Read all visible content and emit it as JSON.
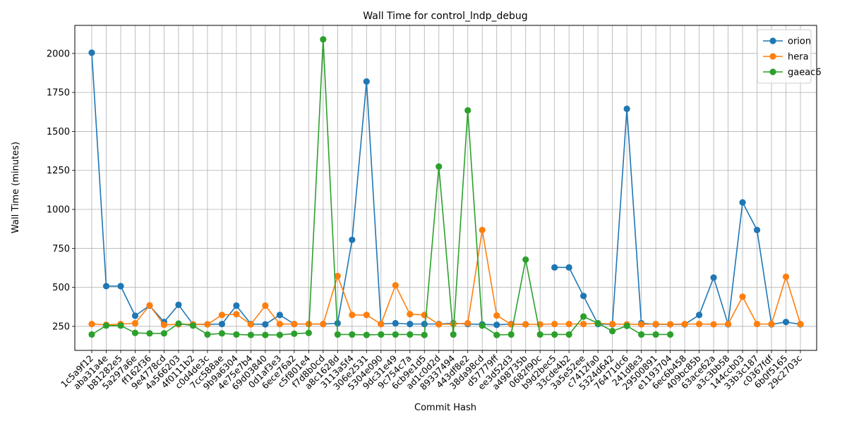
{
  "chart_data": {
    "type": "line",
    "title": "Wall Time for control_lndp_debug",
    "xlabel": "Commit Hash",
    "ylabel": "Wall Time (minutes)",
    "ylim": [
      96,
      2180
    ],
    "yticks": [
      250,
      500,
      750,
      1000,
      1250,
      1500,
      1750,
      2000
    ],
    "grid": true,
    "legend_position": "top-right",
    "categories": [
      "1c5a9f12",
      "aba31a4e",
      "b81282e5",
      "5a297a6e",
      "ff162f36",
      "9e4778cd",
      "4a566203",
      "4f0111b2",
      "c0d4de3c",
      "7cc588ae",
      "9b9a6304",
      "4e75e7b4",
      "69d03840",
      "0d1af3e3",
      "6ece76a2",
      "c5f801e4",
      "f7d8b0cd",
      "a8c1628d",
      "3113a5f4",
      "306e2531",
      "5304e090",
      "9dc31e49",
      "9c754c7a",
      "6cb9e1d5",
      "ad1c0d2d",
      "89337494",
      "443df8e2",
      "38da98cd",
      "d57779ff",
      "ee3d52d3",
      "a498735b",
      "0682f90c",
      "b9d2bec5",
      "33cde4b2",
      "3a5e52ee",
      "c7412fa0",
      "5324d642",
      "76471dc6",
      "241d8e3",
      "29500891",
      "e1193704",
      "6ec6b458",
      "409bc85b",
      "63ace62a",
      "a3c3bb58",
      "144ccb03",
      "33b3c187",
      "c0367fdf",
      "6b0f5165",
      "29c2703c"
    ],
    "series": [
      {
        "name": "orion",
        "color": "#1f77b4",
        "values": [
          2005,
          508,
          508,
          318,
          383,
          278,
          388,
          263,
          263,
          265,
          383,
          265,
          263,
          323,
          265,
          265,
          265,
          270,
          805,
          1820,
          265,
          270,
          265,
          265,
          265,
          270,
          265,
          263,
          260,
          265,
          263,
          null,
          628,
          628,
          445,
          265,
          263,
          1645,
          270,
          263,
          263,
          263,
          323,
          563,
          263,
          1045,
          868,
          263,
          278,
          263
        ]
      },
      {
        "name": "hera",
        "color": "#ff7f0e",
        "values": [
          265,
          260,
          265,
          270,
          385,
          260,
          263,
          263,
          263,
          323,
          328,
          263,
          383,
          265,
          265,
          265,
          265,
          573,
          323,
          323,
          265,
          513,
          328,
          323,
          263,
          265,
          270,
          868,
          320,
          263,
          263,
          263,
          265,
          265,
          265,
          270,
          265,
          263,
          263,
          265,
          263,
          265,
          265,
          263,
          265,
          440,
          265,
          265,
          568,
          265
        ]
      },
      {
        "name": "gaeac6",
        "color": "#2ca02c",
        "values": [
          198,
          255,
          255,
          208,
          205,
          205,
          268,
          255,
          198,
          205,
          198,
          195,
          195,
          195,
          203,
          208,
          2090,
          198,
          198,
          195,
          198,
          198,
          198,
          195,
          1275,
          198,
          1635,
          255,
          195,
          198,
          678,
          198,
          198,
          198,
          313,
          270,
          220,
          253,
          198,
          198,
          198,
          null,
          null,
          null,
          null,
          null,
          null,
          null,
          null,
          null
        ]
      }
    ]
  }
}
